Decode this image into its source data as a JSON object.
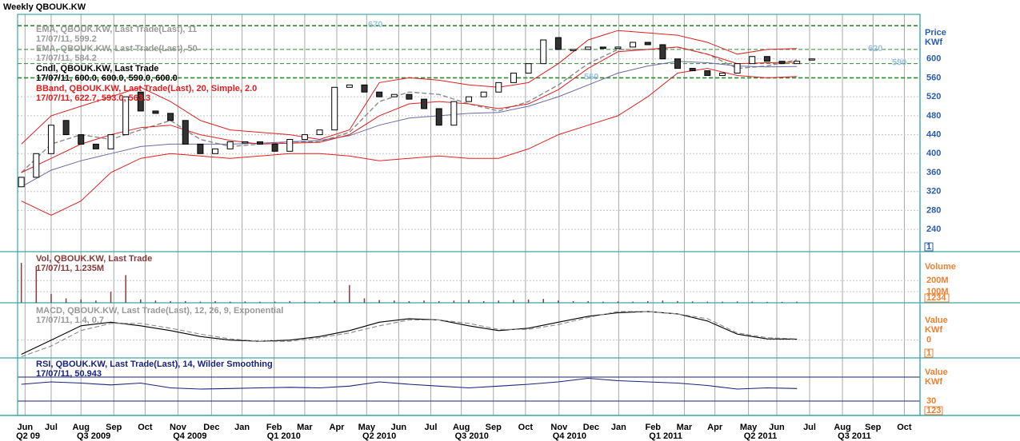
{
  "x_axis": {
    "xlim": [
      -0.5,
      120.5
    ],
    "xticks": [
      {
        "value": 0.5,
        "label": "Jun"
      },
      {
        "value": 4,
        "label": "Jul"
      },
      {
        "value": 8,
        "label": "Aug"
      },
      {
        "value": 12.4,
        "label": "Sep"
      },
      {
        "value": 16.6,
        "label": "Oct"
      },
      {
        "value": 21,
        "label": "Nov"
      },
      {
        "value": 25.5,
        "label": "Dec"
      },
      {
        "value": 29.6,
        "label": "Jan"
      },
      {
        "value": 33.9,
        "label": "Feb"
      },
      {
        "value": 38,
        "label": "Mar"
      },
      {
        "value": 42.3,
        "label": "Apr"
      },
      {
        "value": 46.3,
        "label": "May"
      },
      {
        "value": 50.6,
        "label": "Jun"
      },
      {
        "value": 54.9,
        "label": "Jul"
      },
      {
        "value": 59,
        "label": "Aug"
      },
      {
        "value": 63.3,
        "label": "Sep"
      },
      {
        "value": 67.6,
        "label": "Oct"
      },
      {
        "value": 72.1,
        "label": "Nov"
      },
      {
        "value": 76.4,
        "label": "Dec"
      },
      {
        "value": 80.1,
        "label": "Jan"
      },
      {
        "value": 84.7,
        "label": "Feb"
      },
      {
        "value": 88.9,
        "label": "Mar"
      },
      {
        "value": 93,
        "label": "Apr"
      },
      {
        "value": 97.5,
        "label": "May"
      },
      {
        "value": 101.3,
        "label": "Jun"
      },
      {
        "value": 105.7,
        "label": "Jul"
      },
      {
        "value": 110.1,
        "label": "Aug"
      },
      {
        "value": 114.2,
        "label": "Sep"
      },
      {
        "value": 118.4,
        "label": "Oct"
      }
    ],
    "quarters": [
      {
        "value": 0.9,
        "label": "Q2 09"
      },
      {
        "value": 9.7,
        "label": "Q3 2009"
      },
      {
        "value": 22.6,
        "label": "Q4 2009"
      },
      {
        "value": 35.2,
        "label": "Q1 2010"
      },
      {
        "value": 48,
        "label": "Q2 2010"
      },
      {
        "value": 60.4,
        "label": "Q3 2010"
      },
      {
        "value": 73.5,
        "label": "Q4 2010"
      },
      {
        "value": 86.4,
        "label": "Q1 2011"
      },
      {
        "value": 99.1,
        "label": "Q2 2011"
      },
      {
        "value": 111.7,
        "label": "Q3 2011"
      }
    ]
  },
  "chart_data": [
    {
      "type": "candlestick",
      "title": "Weekly QBOUK.KW",
      "axis_label": [
        "Price",
        "KWf"
      ],
      "axis_color": "#2a5db0",
      "badge": "1",
      "legend": [
        {
          "text": "EMA, QBOUK.KW, Last Trade(Last), 11",
          "color": "#9a9a9a"
        },
        {
          "text": "17/07/11, 599.2",
          "color": "#9a9a9a"
        },
        {
          "text": "EMA, QBOUK.KW, Last Trade(Last), 50",
          "color": "#9a9a9a"
        },
        {
          "text": "17/07/11, 584.2",
          "color": "#9a9a9a"
        },
        {
          "text": "Cndl, QBOUK.KW, Last Trade",
          "color": "#000000"
        },
        {
          "text": "17/07/11, 600.0, 600.0, 590.0, 600.0",
          "color": "#000000"
        },
        {
          "text": "BBand, QBOUK.KW, Last Trade(Last), 20, Simple, 2.0",
          "color": "#e02020"
        },
        {
          "text": "17/07/11, 622.7, 593.0, 563.3",
          "color": "#e02020"
        }
      ],
      "ylim": [
        193,
        694
      ],
      "yticks": [
        240,
        280,
        320,
        360,
        400,
        440,
        480,
        520,
        560,
        600
      ],
      "levels": [
        670,
        620,
        590,
        560
      ],
      "level_color": "#2e8b2e",
      "level_label_color": "#9cc3e6",
      "x": [
        0,
        2,
        4,
        6,
        8,
        10,
        12,
        14,
        16,
        18,
        20,
        22,
        24,
        26,
        28,
        30,
        32,
        34,
        36,
        38,
        40,
        42,
        44,
        46,
        48,
        50,
        52,
        54,
        56,
        58,
        60,
        62,
        64,
        66,
        68,
        70,
        72,
        74,
        76,
        78,
        80,
        82,
        84,
        86,
        88,
        90,
        92,
        94,
        96,
        98,
        100,
        102,
        104,
        106
      ],
      "series": [
        {
          "name": "Cndl",
          "color": "#333333",
          "open": [
            330,
            350,
            400,
            470,
            440,
            420,
            410,
            440,
            530,
            490,
            485,
            470,
            420,
            400,
            410,
            425,
            425,
            420,
            405,
            430,
            440,
            450,
            540,
            545,
            530,
            520,
            525,
            515,
            495,
            460,
            510,
            520,
            530,
            550,
            570,
            590,
            645,
            620,
            620,
            625,
            622,
            625,
            635,
            630,
            600,
            580,
            575,
            565,
            570,
            590,
            605,
            595,
            590,
            600
          ],
          "close": [
            350,
            400,
            460,
            440,
            420,
            410,
            440,
            520,
            490,
            485,
            470,
            420,
            400,
            410,
            425,
            425,
            420,
            405,
            430,
            440,
            450,
            540,
            545,
            530,
            520,
            525,
            515,
            495,
            460,
            510,
            520,
            530,
            550,
            570,
            590,
            640,
            620,
            620,
            625,
            622,
            625,
            635,
            630,
            600,
            580,
            575,
            565,
            570,
            590,
            605,
            595,
            590,
            595,
            600
          ]
        }
      ],
      "line_x": [
        0,
        4,
        8,
        12,
        16,
        20,
        24,
        28,
        32,
        36,
        40,
        44,
        48,
        52,
        56,
        60,
        64,
        68,
        72,
        76,
        80,
        84,
        88,
        92,
        96,
        100,
        104
      ],
      "overlays": [
        {
          "color": "#8a8a8a",
          "dash": true,
          "values": [
            360,
            420,
            440,
            430,
            450,
            470,
            430,
            415,
            420,
            425,
            425,
            445,
            510,
            530,
            525,
            505,
            490,
            510,
            545,
            590,
            620,
            620,
            625,
            610,
            580,
            585,
            598
          ]
        },
        {
          "color": "#6a6aa8",
          "dash": false,
          "values": [
            330,
            365,
            385,
            400,
            415,
            420,
            420,
            420,
            422,
            425,
            428,
            438,
            460,
            475,
            480,
            485,
            487,
            500,
            520,
            545,
            570,
            585,
            595,
            592,
            585,
            583,
            584
          ]
        },
        {
          "color": "#e02020",
          "dash": false,
          "values": [
            420,
            480,
            500,
            520,
            540,
            510,
            470,
            450,
            445,
            440,
            430,
            450,
            550,
            560,
            555,
            545,
            540,
            550,
            590,
            640,
            660,
            655,
            650,
            635,
            610,
            620,
            622
          ]
        },
        {
          "color": "#e02020",
          "dash": false,
          "values": [
            360,
            390,
            420,
            440,
            455,
            460,
            440,
            428,
            420,
            422,
            424,
            440,
            480,
            505,
            510,
            505,
            495,
            505,
            535,
            580,
            615,
            620,
            625,
            610,
            590,
            592,
            593
          ]
        },
        {
          "color": "#e02020",
          "dash": false,
          "values": [
            300,
            270,
            300,
            360,
            390,
            400,
            395,
            390,
            395,
            400,
            400,
            395,
            385,
            390,
            395,
            390,
            390,
            410,
            440,
            460,
            480,
            520,
            570,
            580,
            565,
            560,
            563
          ]
        }
      ]
    },
    {
      "type": "bar",
      "axis_label": [
        "Volume"
      ],
      "axis_color": "#f08030",
      "badge": "1234",
      "color": "#8b3a3a",
      "legend": [
        {
          "text": "Vol, QBOUK.KW, Last Trade",
          "color": "#8b3a3a"
        },
        {
          "text": "17/07/11, 1.235M",
          "color": "#8b3a3a"
        }
      ],
      "ylim": [
        0,
        440
      ],
      "yticks": [
        {
          "value": 200,
          "label": "200M"
        },
        {
          "value": 100,
          "label": "100M"
        }
      ],
      "x": [
        0,
        2,
        4,
        6,
        8,
        10,
        12,
        14,
        16,
        18,
        20,
        22,
        24,
        26,
        28,
        30,
        32,
        34,
        36,
        38,
        40,
        42,
        44,
        46,
        48,
        50,
        52,
        54,
        56,
        58,
        60,
        62,
        64,
        66,
        68,
        70,
        72,
        74,
        76,
        78,
        80,
        82,
        84,
        86,
        88,
        90,
        92,
        94,
        96,
        98,
        100,
        102,
        104,
        106
      ],
      "values": [
        360,
        330,
        80,
        40,
        30,
        20,
        100,
        250,
        30,
        20,
        15,
        15,
        10,
        15,
        10,
        12,
        10,
        10,
        15,
        12,
        10,
        20,
        160,
        40,
        25,
        20,
        15,
        20,
        15,
        20,
        25,
        15,
        20,
        25,
        30,
        35,
        20,
        15,
        15,
        10,
        12,
        10,
        15,
        20,
        15,
        12,
        10,
        10,
        12,
        10,
        8,
        8,
        10,
        1.235
      ]
    },
    {
      "type": "line",
      "axis_label": [
        "Value",
        "KWf"
      ],
      "axis_color": "#f08030",
      "badge": "1",
      "legend": [
        {
          "text": "MACD, QBOUK.KW, Last Trade(Last), 12, 26, 9, Exponential",
          "color": "#9a9a9a"
        },
        {
          "text": "17/07/11, 1.4, 0.7",
          "color": "#9a9a9a"
        }
      ],
      "ylim": [
        -15,
        30
      ],
      "yticks": [
        0
      ],
      "line_x": [
        0,
        4,
        8,
        12,
        16,
        20,
        24,
        28,
        32,
        36,
        40,
        44,
        48,
        52,
        56,
        60,
        64,
        68,
        72,
        76,
        80,
        84,
        88,
        92,
        96,
        100,
        104
      ],
      "series": [
        {
          "color": "#000000",
          "dash": false,
          "values": [
            -12,
            0,
            12,
            15,
            12,
            8,
            3,
            0,
            -1,
            0,
            3,
            8,
            15,
            18,
            17,
            12,
            8,
            10,
            15,
            20,
            23,
            24,
            22,
            16,
            5,
            1,
            0.7
          ]
        },
        {
          "color": "#8a8a8a",
          "dash": true,
          "values": [
            -14,
            -5,
            8,
            14,
            14,
            10,
            5,
            1,
            -1,
            -1,
            2,
            6,
            12,
            17,
            17,
            14,
            9,
            9,
            13,
            19,
            24,
            24,
            22,
            18,
            6,
            2,
            1
          ]
        }
      ]
    },
    {
      "type": "line",
      "axis_label": [
        "Value",
        "KWf"
      ],
      "axis_color": "#f08030",
      "badge": "123",
      "legend": [
        {
          "text": "RSI, QBOUK.KW, Last Trade(Last), 14, Wilder Smoothing",
          "color": "#1a237e"
        },
        {
          "text": "17/07/11, 50.943",
          "color": "#1a237e"
        }
      ],
      "ylim": [
        6,
        102
      ],
      "yticks": [
        30
      ],
      "levels_unlabeled": [
        70
      ],
      "level_color": "#1a237e",
      "line_x": [
        0,
        4,
        8,
        12,
        16,
        20,
        24,
        28,
        32,
        36,
        40,
        44,
        48,
        52,
        56,
        60,
        64,
        68,
        72,
        76,
        80,
        84,
        88,
        92,
        96,
        100,
        104
      ],
      "series": [
        {
          "color": "#1a237e",
          "dash": false,
          "values": [
            58,
            62,
            60,
            57,
            60,
            52,
            50,
            51,
            52,
            53,
            52,
            55,
            62,
            58,
            55,
            52,
            55,
            58,
            62,
            68,
            64,
            62,
            60,
            56,
            50,
            52,
            51
          ]
        }
      ]
    }
  ]
}
